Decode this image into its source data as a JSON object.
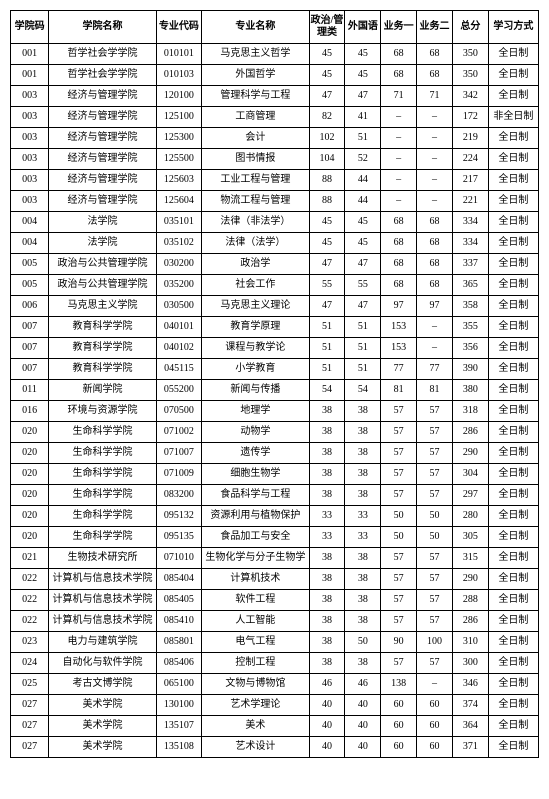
{
  "columns": [
    "学院码",
    "学院名称",
    "专业代码",
    "专业名称",
    "政治/管理类",
    "外国语",
    "业务一",
    "业务二",
    "总分",
    "学习方式"
  ],
  "rows": [
    [
      "001",
      "哲学社会学学院",
      "010101",
      "马克思主义哲学",
      "45",
      "45",
      "68",
      "68",
      "350",
      "全日制"
    ],
    [
      "001",
      "哲学社会学学院",
      "010103",
      "外国哲学",
      "45",
      "45",
      "68",
      "68",
      "350",
      "全日制"
    ],
    [
      "003",
      "经济与管理学院",
      "120100",
      "管理科学与工程",
      "47",
      "47",
      "71",
      "71",
      "342",
      "全日制"
    ],
    [
      "003",
      "经济与管理学院",
      "125100",
      "工商管理",
      "82",
      "41",
      "–",
      "–",
      "172",
      "非全日制"
    ],
    [
      "003",
      "经济与管理学院",
      "125300",
      "会计",
      "102",
      "51",
      "–",
      "–",
      "219",
      "全日制"
    ],
    [
      "003",
      "经济与管理学院",
      "125500",
      "图书情报",
      "104",
      "52",
      "–",
      "–",
      "224",
      "全日制"
    ],
    [
      "003",
      "经济与管理学院",
      "125603",
      "工业工程与管理",
      "88",
      "44",
      "–",
      "–",
      "217",
      "全日制"
    ],
    [
      "003",
      "经济与管理学院",
      "125604",
      "物流工程与管理",
      "88",
      "44",
      "–",
      "–",
      "221",
      "全日制"
    ],
    [
      "004",
      "法学院",
      "035101",
      "法律（非法学）",
      "45",
      "45",
      "68",
      "68",
      "334",
      "全日制"
    ],
    [
      "004",
      "法学院",
      "035102",
      "法律（法学）",
      "45",
      "45",
      "68",
      "68",
      "334",
      "全日制"
    ],
    [
      "005",
      "政治与公共管理学院",
      "030200",
      "政治学",
      "47",
      "47",
      "68",
      "68",
      "337",
      "全日制"
    ],
    [
      "005",
      "政治与公共管理学院",
      "035200",
      "社会工作",
      "55",
      "55",
      "68",
      "68",
      "365",
      "全日制"
    ],
    [
      "006",
      "马克思主义学院",
      "030500",
      "马克思主义理论",
      "47",
      "47",
      "97",
      "97",
      "358",
      "全日制"
    ],
    [
      "007",
      "教育科学学院",
      "040101",
      "教育学原理",
      "51",
      "51",
      "153",
      "–",
      "355",
      "全日制"
    ],
    [
      "007",
      "教育科学学院",
      "040102",
      "课程与教学论",
      "51",
      "51",
      "153",
      "–",
      "356",
      "全日制"
    ],
    [
      "007",
      "教育科学学院",
      "045115",
      "小学教育",
      "51",
      "51",
      "77",
      "77",
      "390",
      "全日制"
    ],
    [
      "011",
      "新闻学院",
      "055200",
      "新闻与传播",
      "54",
      "54",
      "81",
      "81",
      "380",
      "全日制"
    ],
    [
      "016",
      "环境与资源学院",
      "070500",
      "地理学",
      "38",
      "38",
      "57",
      "57",
      "318",
      "全日制"
    ],
    [
      "020",
      "生命科学学院",
      "071002",
      "动物学",
      "38",
      "38",
      "57",
      "57",
      "286",
      "全日制"
    ],
    [
      "020",
      "生命科学学院",
      "071007",
      "遗传学",
      "38",
      "38",
      "57",
      "57",
      "290",
      "全日制"
    ],
    [
      "020",
      "生命科学学院",
      "071009",
      "细胞生物学",
      "38",
      "38",
      "57",
      "57",
      "304",
      "全日制"
    ],
    [
      "020",
      "生命科学学院",
      "083200",
      "食品科学与工程",
      "38",
      "38",
      "57",
      "57",
      "297",
      "全日制"
    ],
    [
      "020",
      "生命科学学院",
      "095132",
      "资源利用与植物保护",
      "33",
      "33",
      "50",
      "50",
      "280",
      "全日制"
    ],
    [
      "020",
      "生命科学学院",
      "095135",
      "食品加工与安全",
      "33",
      "33",
      "50",
      "50",
      "305",
      "全日制"
    ],
    [
      "021",
      "生物技术研究所",
      "071010",
      "生物化学与分子生物学",
      "38",
      "38",
      "57",
      "57",
      "315",
      "全日制"
    ],
    [
      "022",
      "计算机与信息技术学院",
      "085404",
      "计算机技术",
      "38",
      "38",
      "57",
      "57",
      "290",
      "全日制"
    ],
    [
      "022",
      "计算机与信息技术学院",
      "085405",
      "软件工程",
      "38",
      "38",
      "57",
      "57",
      "288",
      "全日制"
    ],
    [
      "022",
      "计算机与信息技术学院",
      "085410",
      "人工智能",
      "38",
      "38",
      "57",
      "57",
      "286",
      "全日制"
    ],
    [
      "023",
      "电力与建筑学院",
      "085801",
      "电气工程",
      "38",
      "50",
      "90",
      "100",
      "310",
      "全日制"
    ],
    [
      "024",
      "自动化与软件学院",
      "085406",
      "控制工程",
      "38",
      "38",
      "57",
      "57",
      "300",
      "全日制"
    ],
    [
      "025",
      "考古文博学院",
      "065100",
      "文物与博物馆",
      "46",
      "46",
      "138",
      "–",
      "346",
      "全日制"
    ],
    [
      "027",
      "美术学院",
      "130100",
      "艺术学理论",
      "40",
      "40",
      "60",
      "60",
      "374",
      "全日制"
    ],
    [
      "027",
      "美术学院",
      "135107",
      "美术",
      "40",
      "40",
      "60",
      "60",
      "364",
      "全日制"
    ],
    [
      "027",
      "美术学院",
      "135108",
      "艺术设计",
      "40",
      "40",
      "60",
      "60",
      "371",
      "全日制"
    ]
  ]
}
